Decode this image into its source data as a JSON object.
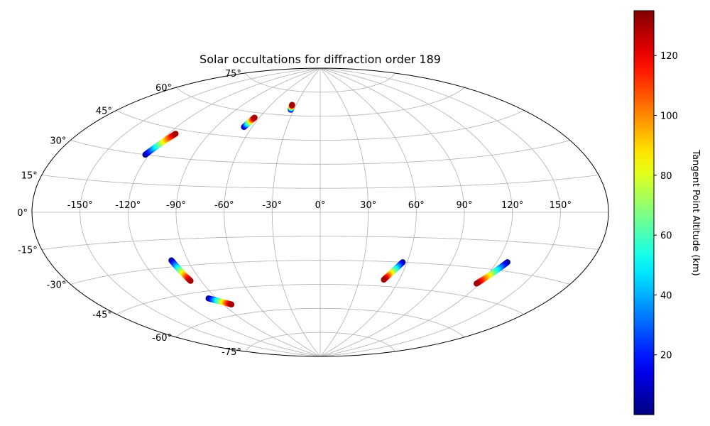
{
  "chart_data": {
    "type": "scatter",
    "projection": "aitoff",
    "title": "Solar occultations for diffraction order 189",
    "lon_ticks": [
      "-150°",
      "-120°",
      "-90°",
      "-60°",
      "-30°",
      "0°",
      "30°",
      "60°",
      "90°",
      "120°",
      "150°"
    ],
    "lon_tick_values": [
      -150,
      -120,
      -90,
      -60,
      -30,
      0,
      30,
      60,
      90,
      120,
      150
    ],
    "lat_ticks": [
      "75°",
      "60°",
      "45°",
      "30°",
      "15°",
      "0°",
      "-15°",
      "-30°",
      "-45°",
      "-60°",
      "-75°"
    ],
    "lat_tick_values": [
      75,
      60,
      45,
      30,
      15,
      0,
      -15,
      -30,
      -45,
      -60,
      -75
    ],
    "grid": true,
    "colorbar": {
      "label": "Tangent Point Altitude (km)",
      "colormap": "jet",
      "range": [
        0,
        135
      ],
      "ticks": [
        "20",
        "40",
        "60",
        "80",
        "100",
        "120"
      ],
      "tick_values": [
        20,
        40,
        60,
        80,
        100,
        120
      ]
    },
    "tracks": [
      {
        "lon_start": -122.5,
        "lat_start": 30.0,
        "lon_end": -115.0,
        "lat_end": 42.5,
        "alt_start": 0,
        "alt_end": 130
      },
      {
        "lon_start": -67.0,
        "lat_start": 51.0,
        "lon_end": -64.5,
        "lat_end": 57.0,
        "alt_start": 0,
        "alt_end": 130
      },
      {
        "lon_start": -33.5,
        "lat_start": 63.5,
        "lon_end": -35.0,
        "lat_end": 66.5,
        "alt_start": 0,
        "alt_end": 130
      },
      {
        "lon_start": -101.0,
        "lat_start": -26.5,
        "lon_end": -97.5,
        "lat_end": -38.5,
        "alt_start": 0,
        "alt_end": 130
      },
      {
        "lon_start": -96.5,
        "lat_start": -49.0,
        "lon_end": -83.0,
        "lat_end": -54.0,
        "alt_start": 0,
        "alt_end": 130
      },
      {
        "lon_start": 57.0,
        "lat_start": -30.0,
        "lon_end": 48.5,
        "lat_end": -41.0,
        "alt_start": 0,
        "alt_end": 130
      },
      {
        "lon_start": 127.0,
        "lat_start": -25.5,
        "lon_end": 118.0,
        "lat_end": -38.0,
        "alt_start": 0,
        "alt_end": 130
      }
    ]
  }
}
